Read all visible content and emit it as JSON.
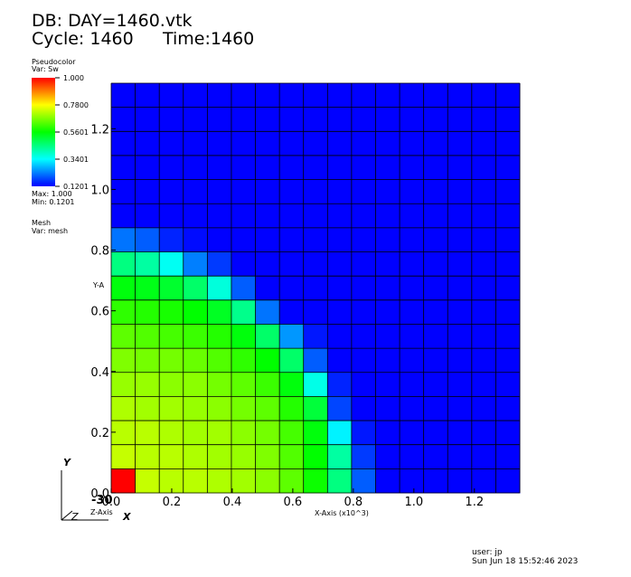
{
  "header": {
    "db_line": "DB: DAY=1460.vtk",
    "cycle_label": "Cycle: 1460",
    "time_label": "Time:1460"
  },
  "legend": {
    "plot_type": "Pseudocolor",
    "var_label": "Var: Sw",
    "tick_labels": [
      "1.000",
      "0.7800",
      "0.5601",
      "0.3401",
      "0.1201"
    ],
    "max_label": "Max:  1.000",
    "min_label": "Min:  0.1201",
    "mesh_label": "Mesh",
    "mesh_var_label": "Var: mesh"
  },
  "axes": {
    "x_label": "X-Axis (x10^3)",
    "y_label": "Y-A",
    "z_label": "Z-Axis",
    "triad_y": "Y",
    "triad_x": "X",
    "triad_z": "Z",
    "triad_offset": "-30"
  },
  "footer": {
    "user": "user: jp",
    "date": "Sun Jun 18 15:52:46 2023"
  },
  "colors": {
    "background": "#ffffff",
    "grid_line": "#000000",
    "colormap": [
      "#0000ff",
      "#00ffff",
      "#00ff00",
      "#ffff00",
      "#ff0000"
    ]
  },
  "chart_data": {
    "type": "heatmap",
    "variable": "Sw",
    "colormap": "hot",
    "value_range": [
      0.1201,
      1.0
    ],
    "x_ticks": [
      "0.0",
      "0.2",
      "0.4",
      "0.6",
      "0.8",
      "1.0",
      "1.2"
    ],
    "y_ticks": [
      "0.0",
      "0.2",
      "0.4",
      "0.6",
      "0.8",
      "1.0",
      "1.2"
    ],
    "x_range": [
      0,
      1.35
    ],
    "y_range": [
      0,
      1.35
    ],
    "grid": true,
    "cells_x": 17,
    "cells_y": 17,
    "row_order": "top-to-bottom",
    "values": [
      [
        0.12,
        0.12,
        0.12,
        0.12,
        0.12,
        0.12,
        0.12,
        0.12,
        0.12,
        0.12,
        0.12,
        0.12,
        0.12,
        0.12,
        0.12,
        0.12,
        0.12
      ],
      [
        0.12,
        0.12,
        0.12,
        0.12,
        0.12,
        0.12,
        0.12,
        0.12,
        0.12,
        0.12,
        0.12,
        0.12,
        0.12,
        0.12,
        0.12,
        0.12,
        0.12
      ],
      [
        0.12,
        0.12,
        0.12,
        0.12,
        0.12,
        0.12,
        0.12,
        0.12,
        0.12,
        0.12,
        0.12,
        0.12,
        0.12,
        0.12,
        0.12,
        0.12,
        0.12
      ],
      [
        0.12,
        0.12,
        0.12,
        0.12,
        0.12,
        0.12,
        0.12,
        0.12,
        0.12,
        0.12,
        0.12,
        0.12,
        0.12,
        0.12,
        0.12,
        0.12,
        0.12
      ],
      [
        0.12,
        0.12,
        0.12,
        0.12,
        0.12,
        0.12,
        0.12,
        0.12,
        0.12,
        0.12,
        0.12,
        0.12,
        0.12,
        0.12,
        0.12,
        0.12,
        0.12
      ],
      [
        0.12,
        0.12,
        0.12,
        0.12,
        0.12,
        0.12,
        0.12,
        0.12,
        0.12,
        0.12,
        0.12,
        0.12,
        0.12,
        0.12,
        0.12,
        0.12,
        0.12
      ],
      [
        0.22,
        0.2,
        0.15,
        0.13,
        0.12,
        0.12,
        0.12,
        0.12,
        0.12,
        0.12,
        0.12,
        0.12,
        0.12,
        0.12,
        0.12,
        0.12,
        0.12
      ],
      [
        0.45,
        0.42,
        0.35,
        0.23,
        0.17,
        0.12,
        0.12,
        0.12,
        0.12,
        0.12,
        0.12,
        0.12,
        0.12,
        0.12,
        0.12,
        0.12,
        0.12
      ],
      [
        0.55,
        0.54,
        0.52,
        0.47,
        0.37,
        0.2,
        0.12,
        0.12,
        0.12,
        0.12,
        0.12,
        0.12,
        0.12,
        0.12,
        0.12,
        0.12,
        0.12
      ],
      [
        0.6,
        0.59,
        0.58,
        0.56,
        0.53,
        0.44,
        0.22,
        0.12,
        0.12,
        0.12,
        0.12,
        0.12,
        0.12,
        0.12,
        0.12,
        0.12,
        0.12
      ],
      [
        0.64,
        0.63,
        0.62,
        0.61,
        0.59,
        0.55,
        0.47,
        0.25,
        0.14,
        0.12,
        0.12,
        0.12,
        0.12,
        0.12,
        0.12,
        0.12,
        0.12
      ],
      [
        0.67,
        0.66,
        0.66,
        0.65,
        0.63,
        0.6,
        0.56,
        0.47,
        0.2,
        0.12,
        0.12,
        0.12,
        0.12,
        0.12,
        0.12,
        0.12,
        0.12
      ],
      [
        0.69,
        0.69,
        0.68,
        0.68,
        0.66,
        0.64,
        0.61,
        0.55,
        0.36,
        0.15,
        0.12,
        0.12,
        0.12,
        0.12,
        0.12,
        0.12,
        0.12
      ],
      [
        0.71,
        0.7,
        0.7,
        0.69,
        0.68,
        0.66,
        0.64,
        0.59,
        0.51,
        0.18,
        0.12,
        0.12,
        0.12,
        0.12,
        0.12,
        0.12,
        0.12
      ],
      [
        0.72,
        0.72,
        0.71,
        0.7,
        0.7,
        0.68,
        0.66,
        0.62,
        0.55,
        0.33,
        0.14,
        0.12,
        0.12,
        0.12,
        0.12,
        0.12,
        0.12
      ],
      [
        0.73,
        0.72,
        0.72,
        0.71,
        0.7,
        0.69,
        0.67,
        0.63,
        0.56,
        0.42,
        0.17,
        0.12,
        0.12,
        0.12,
        0.12,
        0.12,
        0.12
      ],
      [
        1.0,
        0.73,
        0.72,
        0.72,
        0.71,
        0.7,
        0.68,
        0.64,
        0.57,
        0.45,
        0.2,
        0.12,
        0.12,
        0.12,
        0.12,
        0.12,
        0.12
      ]
    ]
  }
}
